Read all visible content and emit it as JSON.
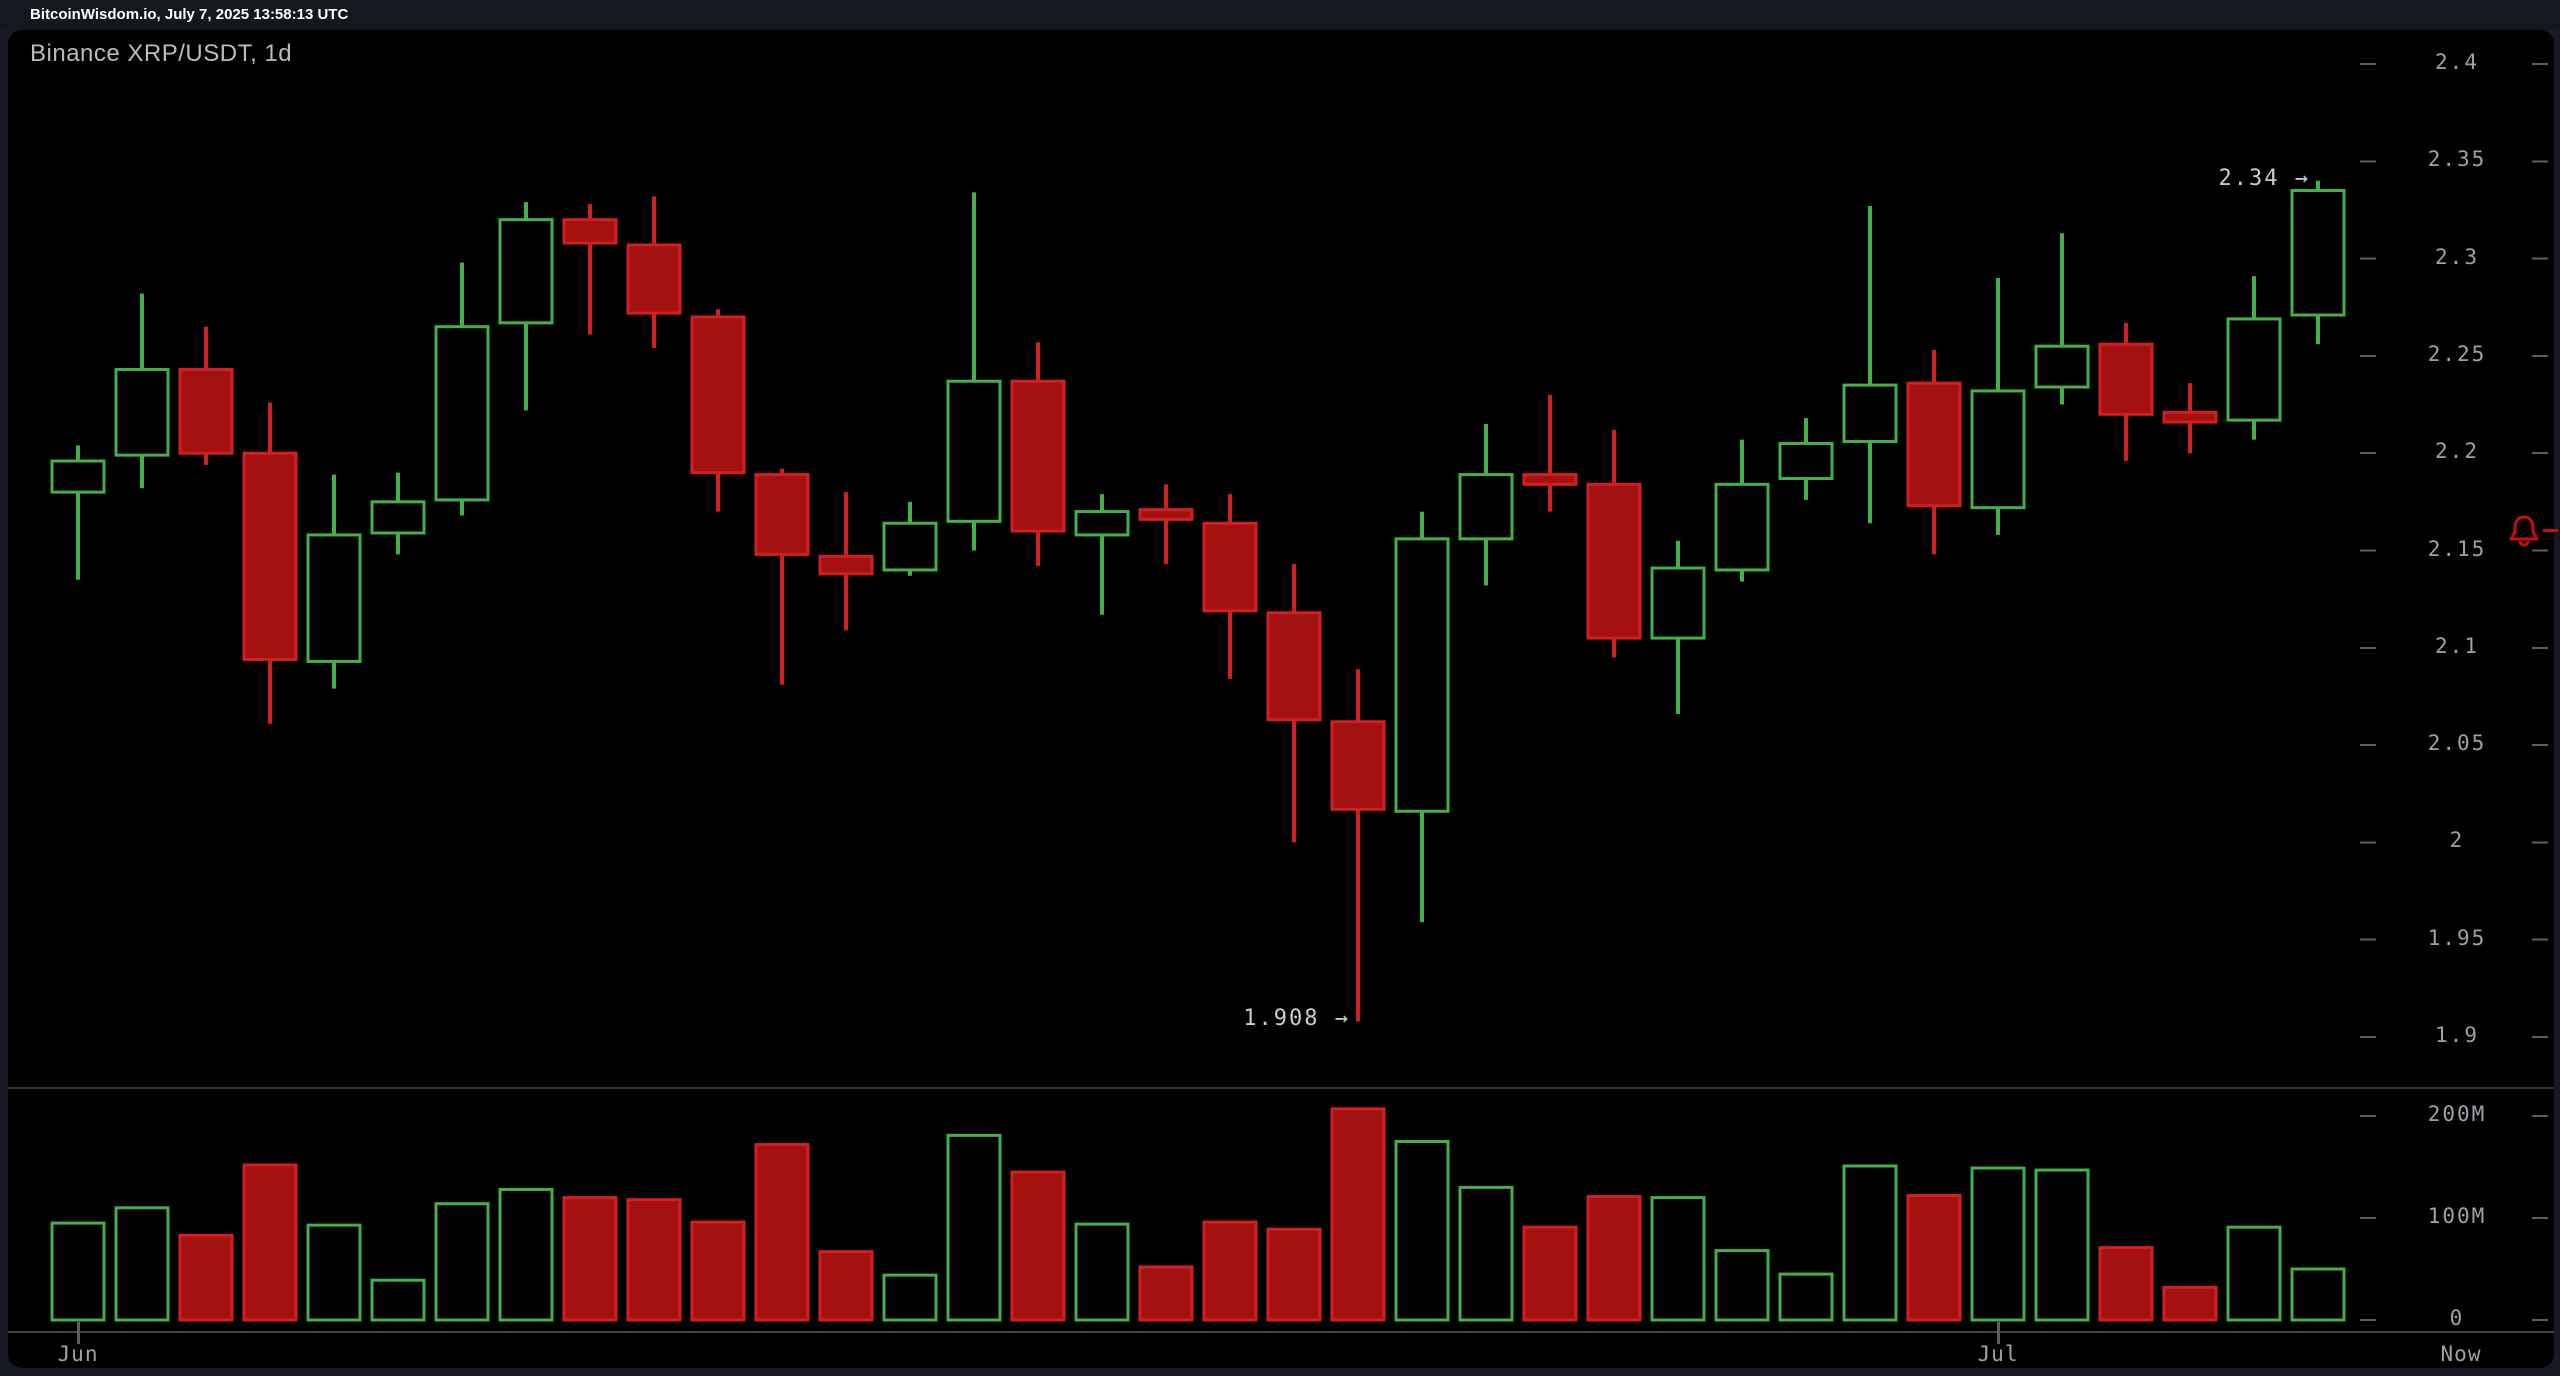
{
  "top_bar": {
    "text": "BitcoinWisdom.io, July 7, 2025 13:58:13 UTC"
  },
  "chart": {
    "title": "Binance XRP/USDT, 1d"
  },
  "colors": {
    "up_stroke": "#43b148",
    "down_fill": "#a31111",
    "down_stroke": "#d21f1f",
    "alert_red": "#c80f0f",
    "axis_text": "#9fa1a8",
    "annotation_text": "#cbcdd1",
    "tick_dash": "#5c5e66",
    "divider_line": "#2e3038",
    "time_axis_line": "#44464e",
    "panel_bg": "#000000",
    "page_bg": "#171923"
  },
  "chart_data": {
    "type": "candlestick_with_volume",
    "title": "Binance XRP/USDT, 1d",
    "exchange": "Binance",
    "pair": "XRP/USDT",
    "interval": "1d",
    "price_axis": {
      "min": 1.9,
      "max": 2.4,
      "ticks": [
        "2.4",
        "2.35",
        "2.3",
        "2.25",
        "2.2",
        "2.15",
        "2.1",
        "2.05",
        "2",
        "1.95",
        "1.9"
      ]
    },
    "volume_axis": {
      "unit": "millions",
      "ticks": [
        {
          "label": "200M",
          "value": 200
        },
        {
          "label": "100M",
          "value": 100
        },
        {
          "label": "0",
          "value": 0
        }
      ]
    },
    "x_axis": {
      "month_labels": [
        {
          "label": "Jun",
          "candle_index": 0
        },
        {
          "label": "Jul",
          "candle_index": 30
        }
      ],
      "now_label": "Now"
    },
    "annotations": [
      {
        "text": "1.908 →",
        "price": 1.908,
        "candle_index": 20,
        "points_to": "lowest-low"
      },
      {
        "text": "2.34 →",
        "price": 2.34,
        "candle_index": 35,
        "points_to": "latest-high"
      }
    ],
    "alert": {
      "icon": "bell",
      "price": 2.16
    },
    "candles": [
      {
        "o": 2.18,
        "h": 2.204,
        "l": 2.135,
        "c": 2.196,
        "v": 95
      },
      {
        "o": 2.199,
        "h": 2.282,
        "l": 2.182,
        "c": 2.243,
        "v": 110
      },
      {
        "o": 2.243,
        "h": 2.265,
        "l": 2.194,
        "c": 2.2,
        "v": 83
      },
      {
        "o": 2.2,
        "h": 2.226,
        "l": 2.061,
        "c": 2.094,
        "v": 152
      },
      {
        "o": 2.093,
        "h": 2.189,
        "l": 2.079,
        "c": 2.158,
        "v": 93
      },
      {
        "o": 2.159,
        "h": 2.19,
        "l": 2.148,
        "c": 2.175,
        "v": 39
      },
      {
        "o": 2.176,
        "h": 2.298,
        "l": 2.168,
        "c": 2.265,
        "v": 114
      },
      {
        "o": 2.267,
        "h": 2.329,
        "l": 2.222,
        "c": 2.32,
        "v": 128
      },
      {
        "o": 2.32,
        "h": 2.328,
        "l": 2.261,
        "c": 2.308,
        "v": 120
      },
      {
        "o": 2.307,
        "h": 2.332,
        "l": 2.254,
        "c": 2.272,
        "v": 118
      },
      {
        "o": 2.27,
        "h": 2.274,
        "l": 2.17,
        "c": 2.19,
        "v": 96
      },
      {
        "o": 2.189,
        "h": 2.192,
        "l": 2.081,
        "c": 2.148,
        "v": 172
      },
      {
        "o": 2.147,
        "h": 2.18,
        "l": 2.109,
        "c": 2.138,
        "v": 67
      },
      {
        "o": 2.14,
        "h": 2.175,
        "l": 2.137,
        "c": 2.164,
        "v": 44
      },
      {
        "o": 2.165,
        "h": 2.334,
        "l": 2.15,
        "c": 2.237,
        "v": 181
      },
      {
        "o": 2.237,
        "h": 2.257,
        "l": 2.142,
        "c": 2.16,
        "v": 145
      },
      {
        "o": 2.158,
        "h": 2.179,
        "l": 2.117,
        "c": 2.17,
        "v": 94
      },
      {
        "o": 2.171,
        "h": 2.184,
        "l": 2.143,
        "c": 2.166,
        "v": 52
      },
      {
        "o": 2.164,
        "h": 2.179,
        "l": 2.084,
        "c": 2.119,
        "v": 96
      },
      {
        "o": 2.118,
        "h": 2.143,
        "l": 2.0,
        "c": 2.063,
        "v": 89
      },
      {
        "o": 2.062,
        "h": 2.089,
        "l": 1.908,
        "c": 2.017,
        "v": 207
      },
      {
        "o": 2.016,
        "h": 2.17,
        "l": 1.959,
        "c": 2.156,
        "v": 175
      },
      {
        "o": 2.156,
        "h": 2.215,
        "l": 2.132,
        "c": 2.189,
        "v": 130
      },
      {
        "o": 2.189,
        "h": 2.23,
        "l": 2.17,
        "c": 2.184,
        "v": 91
      },
      {
        "o": 2.184,
        "h": 2.212,
        "l": 2.095,
        "c": 2.105,
        "v": 121
      },
      {
        "o": 2.105,
        "h": 2.155,
        "l": 2.066,
        "c": 2.141,
        "v": 120
      },
      {
        "o": 2.14,
        "h": 2.207,
        "l": 2.134,
        "c": 2.184,
        "v": 68
      },
      {
        "o": 2.187,
        "h": 2.218,
        "l": 2.176,
        "c": 2.205,
        "v": 45
      },
      {
        "o": 2.206,
        "h": 2.327,
        "l": 2.164,
        "c": 2.235,
        "v": 151
      },
      {
        "o": 2.236,
        "h": 2.253,
        "l": 2.148,
        "c": 2.173,
        "v": 122
      },
      {
        "o": 2.172,
        "h": 2.29,
        "l": 2.158,
        "c": 2.232,
        "v": 149
      },
      {
        "o": 2.234,
        "h": 2.313,
        "l": 2.225,
        "c": 2.255,
        "v": 147
      },
      {
        "o": 2.256,
        "h": 2.267,
        "l": 2.196,
        "c": 2.22,
        "v": 71
      },
      {
        "o": 2.221,
        "h": 2.236,
        "l": 2.2,
        "c": 2.216,
        "v": 32
      },
      {
        "o": 2.217,
        "h": 2.291,
        "l": 2.207,
        "c": 2.269,
        "v": 91
      },
      {
        "o": 2.271,
        "h": 2.34,
        "l": 2.256,
        "c": 2.335,
        "v": 50
      }
    ]
  }
}
